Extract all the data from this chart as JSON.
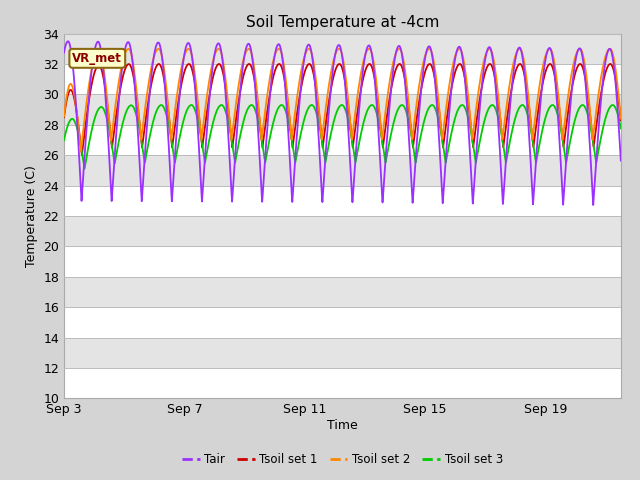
{
  "title": "Soil Temperature at -4cm",
  "xlabel": "Time",
  "ylabel": "Temperature (C)",
  "ylim": [
    10,
    34
  ],
  "yticks": [
    10,
    12,
    14,
    16,
    18,
    20,
    22,
    24,
    26,
    28,
    30,
    32,
    34
  ],
  "xtick_labels": [
    "Sep 3",
    "Sep 7",
    "Sep 11",
    "Sep 15",
    "Sep 19"
  ],
  "bg_color": "#d4d4d4",
  "plot_bg_color": "#e4e4e4",
  "line_colors": {
    "Tair": "#9b30ff",
    "Tsoil1": "#cc0000",
    "Tsoil2": "#ff8800",
    "Tsoil3": "#00cc00"
  },
  "line_widths": {
    "Tair": 1.3,
    "Tsoil1": 1.3,
    "Tsoil2": 1.3,
    "Tsoil3": 1.3
  },
  "legend_labels": [
    "Tair",
    "Tsoil set 1",
    "Tsoil set 2",
    "Tsoil set 3"
  ],
  "vr_met_label": "VR_met",
  "title_fontsize": 11,
  "axis_fontsize": 9,
  "tick_fontsize": 9
}
